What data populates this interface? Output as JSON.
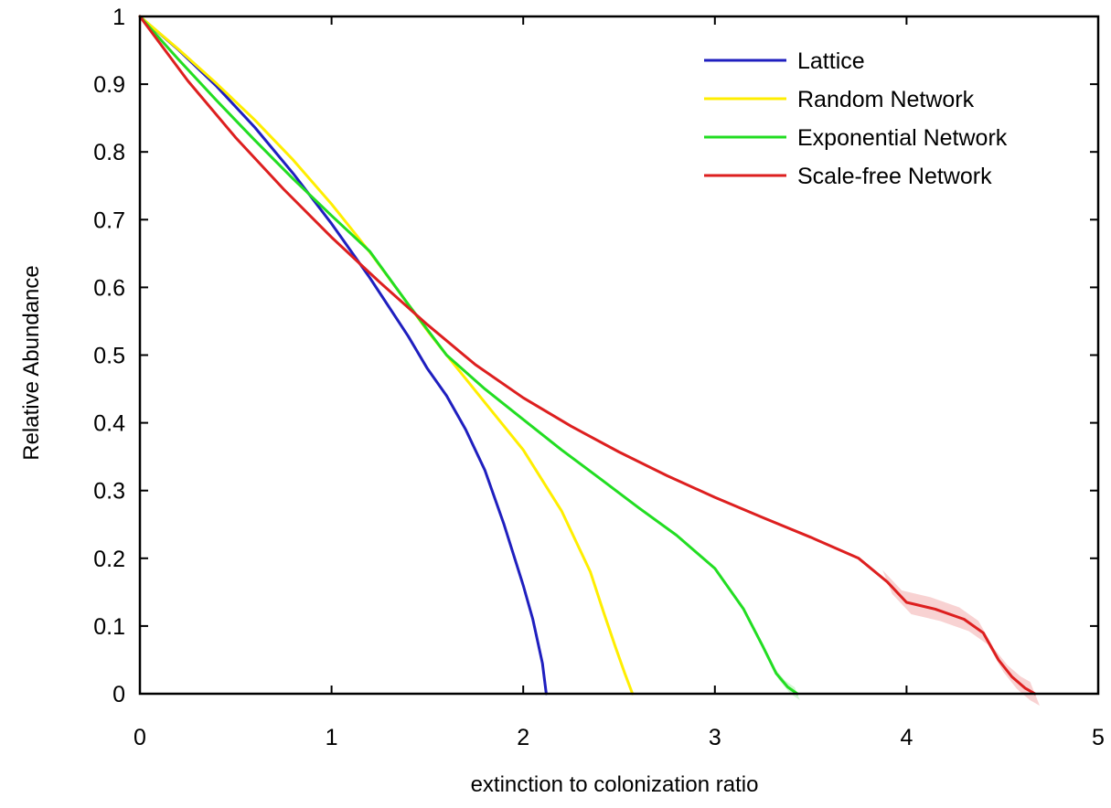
{
  "chart_data": {
    "type": "line",
    "title": "",
    "xlabel": "extinction to colonization ratio",
    "ylabel": "Relative Abundance",
    "xlim": [
      0,
      5
    ],
    "ylim": [
      0,
      1
    ],
    "xticks": [
      "0",
      "1",
      "2",
      "3",
      "4",
      "5"
    ],
    "yticks": [
      "0",
      "0.1",
      "0.2",
      "0.3",
      "0.4",
      "0.5",
      "0.6",
      "0.7",
      "0.8",
      "0.9",
      "1"
    ],
    "grid": false,
    "legend_position": "top-right",
    "series": [
      {
        "name": "Lattice",
        "color": "#1f1fbf",
        "x": [
          0,
          0.2,
          0.4,
          0.6,
          0.8,
          1.0,
          1.2,
          1.4,
          1.5,
          1.6,
          1.7,
          1.8,
          1.9,
          2.0,
          2.05,
          2.1,
          2.12
        ],
        "y": [
          1.0,
          0.951,
          0.897,
          0.836,
          0.768,
          0.694,
          0.614,
          0.528,
          0.48,
          0.44,
          0.39,
          0.33,
          0.25,
          0.16,
          0.11,
          0.045,
          0.0
        ]
      },
      {
        "name": "Random Network",
        "color": "#ffee00",
        "x": [
          0,
          0.2,
          0.4,
          0.6,
          0.8,
          1.0,
          1.2,
          1.4,
          1.5,
          1.6,
          1.8,
          2.0,
          2.2,
          2.35,
          2.42,
          2.48,
          2.53,
          2.57
        ],
        "y": [
          1.0,
          0.952,
          0.901,
          0.847,
          0.788,
          0.723,
          0.652,
          0.575,
          0.536,
          0.5,
          0.43,
          0.36,
          0.27,
          0.18,
          0.12,
          0.07,
          0.03,
          0.0
        ]
      },
      {
        "name": "Exponential Network",
        "color": "#22dd22",
        "x": [
          0,
          0.2,
          0.4,
          0.6,
          0.8,
          1.0,
          1.2,
          1.4,
          1.6,
          1.8,
          2.0,
          2.2,
          2.4,
          2.6,
          2.8,
          3.0,
          3.15,
          3.25,
          3.32,
          3.38,
          3.43
        ],
        "y": [
          1.0,
          0.937,
          0.876,
          0.817,
          0.76,
          0.706,
          0.653,
          0.575,
          0.5,
          0.45,
          0.405,
          0.36,
          0.318,
          0.275,
          0.234,
          0.185,
          0.125,
          0.07,
          0.03,
          0.01,
          0.0
        ]
      },
      {
        "name": "Scale-free Network",
        "color": "#dd1f1f",
        "x": [
          0,
          0.25,
          0.5,
          0.75,
          1.0,
          1.25,
          1.5,
          1.75,
          2.0,
          2.25,
          2.5,
          2.75,
          3.0,
          3.25,
          3.5,
          3.75,
          3.9,
          4.0,
          4.15,
          4.3,
          4.4,
          4.48,
          4.55,
          4.62,
          4.67
        ],
        "y": [
          1.0,
          0.905,
          0.821,
          0.745,
          0.674,
          0.608,
          0.545,
          0.486,
          0.437,
          0.395,
          0.357,
          0.322,
          0.29,
          0.26,
          0.231,
          0.2,
          0.165,
          0.135,
          0.125,
          0.11,
          0.09,
          0.05,
          0.025,
          0.008,
          0.0
        ]
      }
    ]
  }
}
